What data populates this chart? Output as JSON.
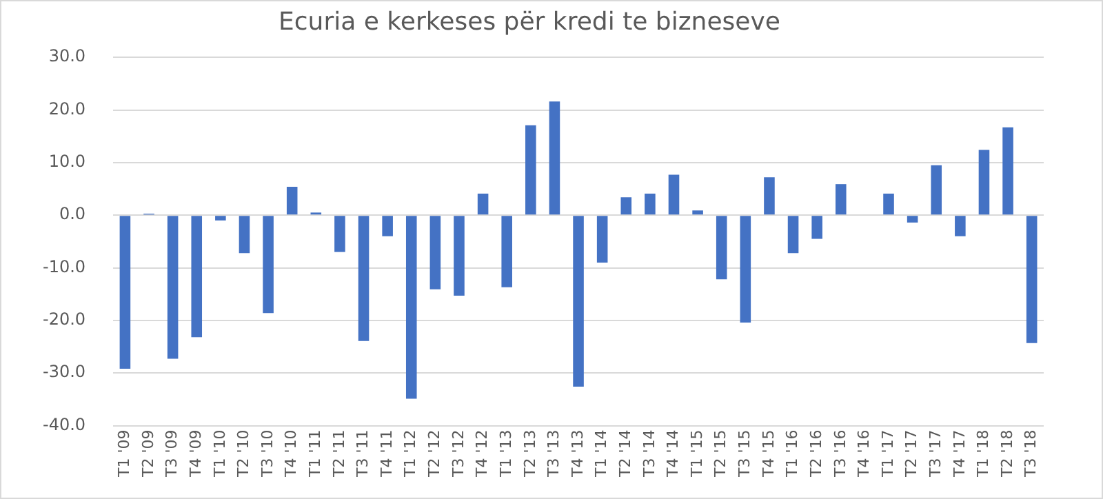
{
  "chart_data": {
    "type": "bar",
    "title": "Ecuria e kerkeses për kredi te bizneseve",
    "categories": [
      "T1 '09",
      "T2 '09",
      "T3 '09",
      "T4 '09",
      "T1 '10",
      "T2 '10",
      "T3 '10",
      "T4 '10",
      "T1 '11",
      "T2 '11",
      "T3 '11",
      "T4 '11",
      "T1 '12",
      "T2 '12",
      "T3 '12",
      "T4 '12",
      "T1 '13",
      "T2 '13",
      "T3 '13",
      "T4 '13",
      "T1 '14",
      "T2 '14",
      "T3 '14",
      "T4 '14",
      "T1 '15",
      "T2 '15",
      "T3 '15",
      "T4 '15",
      "T1 '16",
      "T2 '16",
      "T3 '16",
      "T4 '16",
      "T1 '17",
      "T2 '17",
      "T3 '17",
      "T4 '17",
      "T1 '18",
      "T2 '18",
      "T3 '18"
    ],
    "values": [
      -29.2,
      0.3,
      -27.3,
      -23.2,
      -1.0,
      -7.2,
      -18.6,
      5.4,
      0.5,
      -7.0,
      -23.9,
      -4.0,
      -34.9,
      -14.1,
      -15.3,
      4.1,
      -13.7,
      17.1,
      21.6,
      -32.6,
      -9.0,
      3.4,
      4.1,
      7.7,
      0.9,
      -12.2,
      -20.4,
      7.2,
      -7.2,
      -4.5,
      5.9,
      0,
      4.1,
      -1.4,
      9.5,
      -4.0,
      12.4,
      16.7,
      -24.3
    ],
    "color": "#4472c4",
    "ylim": [
      -40,
      30
    ],
    "yticks": [
      {
        "value": -40,
        "label": "-40.0"
      },
      {
        "value": -30,
        "label": "-30.0"
      },
      {
        "value": -20,
        "label": "-20.0"
      },
      {
        "value": -10,
        "label": "-10.0"
      },
      {
        "value": 0,
        "label": "0.0"
      },
      {
        "value": 10,
        "label": "10.0"
      },
      {
        "value": 20,
        "label": "20.0"
      },
      {
        "value": 30,
        "label": "30.0"
      }
    ],
    "grid": "y"
  }
}
